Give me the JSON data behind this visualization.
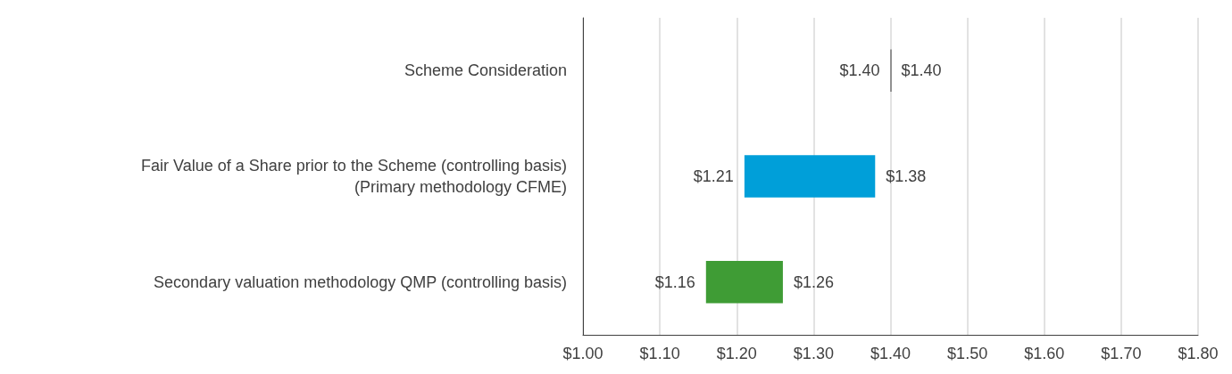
{
  "chart_data": {
    "type": "bar",
    "orientation": "horizontal",
    "categories": [
      "Scheme Consideration",
      "Fair Value of a Share prior to the Scheme (controlling basis)\n(Primary methodology CFME)",
      "Secondary valuation methodology QMP (controlling basis)"
    ],
    "base": [
      1.4,
      1.21,
      1.16
    ],
    "values": [
      0,
      0.17,
      0.1
    ],
    "colors": [
      "#404040",
      "#009fd9",
      "#3f9c35"
    ],
    "xlim": [
      1.0,
      1.8
    ],
    "xticks": [
      {
        "value": 1.0,
        "label": "$1.00"
      },
      {
        "value": 1.1,
        "label": "$1.10"
      },
      {
        "value": 1.2,
        "label": "$1.20"
      },
      {
        "value": 1.3,
        "label": "$1.30"
      },
      {
        "value": 1.4,
        "label": "$1.40"
      },
      {
        "value": 1.5,
        "label": "$1.50"
      },
      {
        "value": 1.6,
        "label": "$1.60"
      },
      {
        "value": 1.7,
        "label": "$1.70"
      },
      {
        "value": 1.8,
        "label": "$1.80"
      }
    ],
    "grid": "x",
    "annotations": [
      {
        "text": "$1.40",
        "x": 1.4,
        "y": "Scheme Consideration"
      },
      {
        "text": "$1.40",
        "x": 1.4,
        "y": "Scheme Consideration"
      },
      {
        "text": "$1.21",
        "x": 1.21,
        "y": "Fair Value of a Share prior to the Scheme (controlling basis)\n(Primary methodology CFME)"
      },
      {
        "text": "$1.38",
        "x": 1.38,
        "y": "Fair Value of a Share prior to the Scheme (controlling basis)\n(Primary methodology CFME)"
      },
      {
        "text": "$1.16",
        "x": 1.16,
        "y": "Secondary valuation methodology QMP (controlling basis)"
      },
      {
        "text": "$1.26",
        "x": 1.26,
        "y": "Secondary valuation methodology QMP (controlling basis)"
      }
    ]
  }
}
